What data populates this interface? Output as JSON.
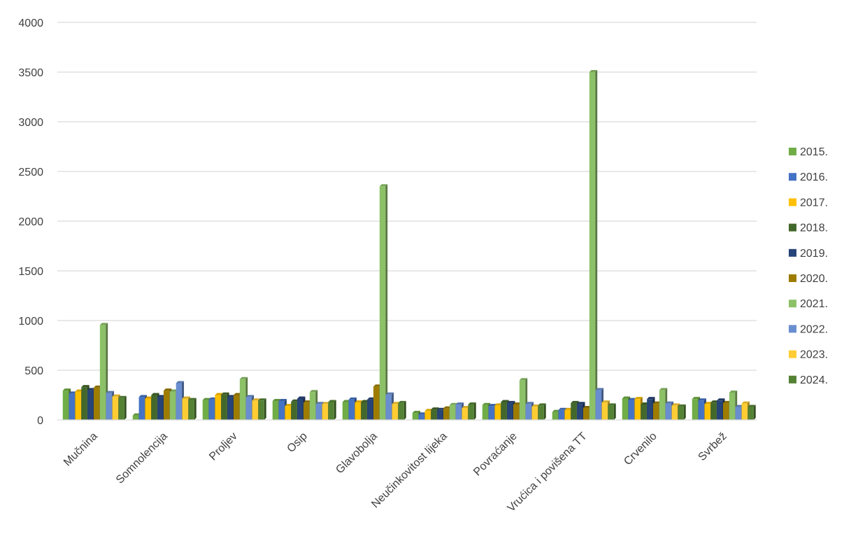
{
  "chart_data": {
    "type": "bar",
    "title": "",
    "xlabel": "",
    "ylabel": "",
    "ylim": [
      0,
      4000
    ],
    "yticks": [
      0,
      500,
      1000,
      1500,
      2000,
      2500,
      3000,
      3500,
      4000
    ],
    "grid": true,
    "legend_position": "right",
    "categories": [
      "Mučnina",
      "Somnolencija",
      "Proljev",
      "Osip",
      "Glavobolja",
      "Neučinkovitost lijeka",
      "Povraćanje",
      "Vrućica i povišena TT",
      "Crvenilo",
      "Svrbež"
    ],
    "series": [
      {
        "name": "2015.",
        "color": "#70ad47",
        "values": [
          295,
          45,
          200,
          190,
          180,
          70,
          150,
          80,
          215,
          210
        ]
      },
      {
        "name": "2016.",
        "color": "#4472c4",
        "values": [
          265,
          230,
          205,
          190,
          205,
          55,
          140,
          100,
          200,
          195
        ]
      },
      {
        "name": "2017.",
        "color": "#ffc000",
        "values": [
          285,
          215,
          250,
          140,
          175,
          90,
          145,
          100,
          210,
          160
        ]
      },
      {
        "name": "2018.",
        "color": "#43682b",
        "values": [
          330,
          250,
          255,
          185,
          180,
          105,
          180,
          170,
          155,
          175
        ]
      },
      {
        "name": "2019.",
        "color": "#264478",
        "values": [
          300,
          230,
          230,
          215,
          205,
          100,
          170,
          160,
          210,
          195
        ]
      },
      {
        "name": "2020.",
        "color": "#9e7c00",
        "values": [
          325,
          295,
          250,
          175,
          335,
          115,
          155,
          120,
          165,
          170
        ]
      },
      {
        "name": "2021.",
        "color": "#8cc168",
        "values": [
          955,
          285,
          410,
          280,
          2350,
          150,
          400,
          3500,
          300,
          275
        ]
      },
      {
        "name": "2022.",
        "color": "#698ed0",
        "values": [
          270,
          370,
          230,
          160,
          255,
          155,
          160,
          300,
          165,
          130
        ]
      },
      {
        "name": "2023.",
        "color": "#ffcd33",
        "values": [
          235,
          215,
          195,
          160,
          160,
          120,
          135,
          175,
          145,
          165
        ]
      },
      {
        "name": "2024.",
        "color": "#548235",
        "values": [
          220,
          200,
          195,
          180,
          170,
          155,
          145,
          145,
          135,
          130
        ]
      }
    ]
  }
}
